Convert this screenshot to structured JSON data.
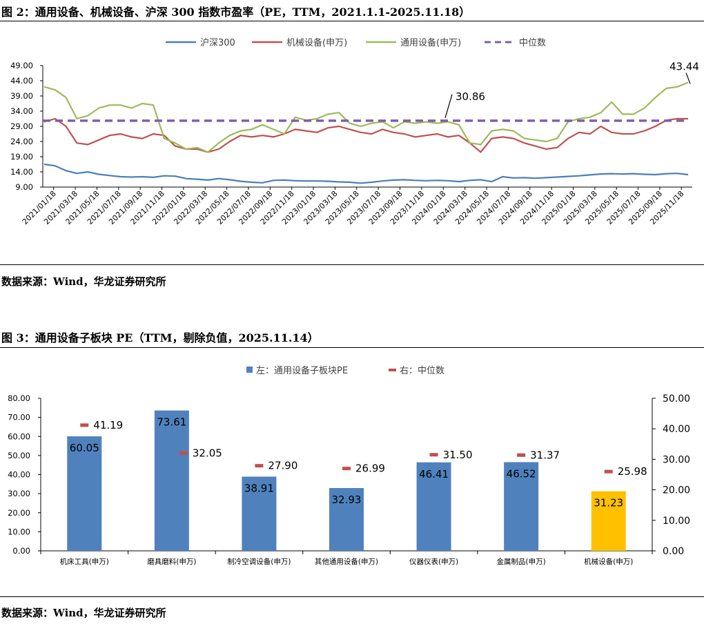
{
  "figures": [
    {
      "heading": "图 2：通用设备、机械设备、沪深 300 指数市盈率（PE，TTM，2021.1.1-2025.11.18）",
      "source": "数据来源：Wind，华龙证券研究所"
    },
    {
      "heading": "图 3：通用设备子板块 PE（TTM，剔除负值，2025.11.14）",
      "source": "数据来源：Wind，华龙证券研究所"
    }
  ],
  "chart_data": [
    {
      "type": "line",
      "title": "",
      "xlabel": "",
      "ylabel": "",
      "ylim": [
        9,
        49
      ],
      "yticks": [
        "49.00",
        "44.00",
        "39.00",
        "34.00",
        "29.00",
        "24.00",
        "19.00",
        "14.00",
        "9.00"
      ],
      "x_ticks": [
        "2021/01/18",
        "2021/03/18",
        "2021/05/18",
        "2021/07/18",
        "2021/09/18",
        "2021/11/18",
        "2022/01/18",
        "2022/03/18",
        "2022/05/18",
        "2022/07/18",
        "2022/09/18",
        "2022/11/18",
        "2023/01/18",
        "2023/03/18",
        "2023/05/18",
        "2023/07/18",
        "2023/09/18",
        "2023/11/18",
        "2024/01/18",
        "2024/03/18",
        "2024/05/18",
        "2024/07/18",
        "2024/09/18",
        "2024/11/18",
        "2025/01/18",
        "2025/03/18",
        "2025/05/18",
        "2025/07/18",
        "2025/09/18",
        "2025/11/18"
      ],
      "grid": false,
      "legend_position": "top",
      "series": [
        {
          "name": "沪深300",
          "color": "#4a7ebb",
          "dash": false,
          "values": [
            16.5,
            16.0,
            14.4,
            13.5,
            14.0,
            13.2,
            12.8,
            12.4,
            12.3,
            12.4,
            12.2,
            12.7,
            12.6,
            11.8,
            11.6,
            11.3,
            11.8,
            11.4,
            10.9,
            10.6,
            10.4,
            11.2,
            11.3,
            11.1,
            11.0,
            11.0,
            10.9,
            10.7,
            10.6,
            10.3,
            10.6,
            11.0,
            11.3,
            11.4,
            11.2,
            11.1,
            11.2,
            11.1,
            10.8,
            11.2,
            11.4,
            10.8,
            12.4,
            12.0,
            12.1,
            11.9,
            12.1,
            12.3,
            12.5,
            12.7,
            13.0,
            13.3,
            13.4,
            13.3,
            13.4,
            13.2,
            13.1,
            13.4,
            13.5,
            13.1
          ]
        },
        {
          "name": "机械设备(申万)",
          "color": "#c0504d",
          "dash": false,
          "values": [
            30.5,
            31.5,
            29.0,
            23.5,
            23.0,
            24.5,
            26.0,
            26.5,
            25.5,
            25.0,
            26.5,
            26.0,
            22.5,
            21.5,
            21.5,
            20.5,
            21.5,
            24.0,
            26.0,
            25.5,
            26.0,
            25.5,
            26.5,
            28.0,
            27.5,
            27.0,
            28.5,
            29.0,
            28.0,
            27.0,
            26.5,
            28.0,
            27.0,
            26.5,
            25.5,
            26.0,
            26.5,
            25.5,
            26.0,
            23.5,
            20.5,
            25.0,
            25.5,
            25.0,
            23.5,
            22.5,
            21.5,
            22.0,
            25.0,
            27.0,
            26.5,
            29.0,
            27.0,
            26.5,
            26.5,
            27.5,
            29.0,
            31.0,
            31.5,
            31.5
          ]
        },
        {
          "name": "通用设备(申万)",
          "color": "#9bbb59",
          "dash": false,
          "values": [
            42.0,
            41.0,
            38.5,
            31.5,
            32.5,
            35.0,
            36.0,
            36.0,
            35.0,
            36.5,
            36.0,
            25.0,
            23.5,
            21.5,
            22.0,
            20.5,
            23.5,
            26.0,
            27.5,
            28.0,
            29.5,
            28.0,
            26.5,
            32.0,
            31.0,
            31.5,
            33.0,
            33.5,
            30.0,
            29.0,
            30.0,
            30.5,
            28.5,
            30.5,
            30.0,
            30.5,
            30.0,
            30.5,
            29.5,
            23.5,
            23.0,
            27.5,
            28.0,
            27.5,
            25.0,
            24.5,
            24.0,
            25.0,
            30.5,
            31.5,
            32.0,
            33.5,
            37.0,
            33.0,
            33.0,
            35.0,
            38.5,
            41.5,
            42.0,
            43.44
          ]
        },
        {
          "name": "中位数",
          "color": "#7f5fa9",
          "dash": true,
          "constant": 30.86
        }
      ],
      "annotations": [
        {
          "label": "30.86",
          "value": 30.86
        },
        {
          "label": "43.44",
          "value": 43.44
        }
      ]
    },
    {
      "type": "bar",
      "title": "",
      "categories": [
        "机床工具(申万)",
        "磨具磨料(申万)",
        "制冷空调设备(申万)",
        "其他通用设备(申万)",
        "仪器仪表(申万)",
        "金属制品(申万)",
        "机械设备(申万)"
      ],
      "ylim_left": [
        0,
        80
      ],
      "yticks_left": [
        "80.00",
        "70.00",
        "60.00",
        "50.00",
        "40.00",
        "30.00",
        "20.00",
        "10.00",
        "0.00"
      ],
      "ylim_right": [
        0,
        50
      ],
      "yticks_right": [
        "50.00",
        "40.00",
        "30.00",
        "20.00",
        "10.00",
        "0.00"
      ],
      "grid": false,
      "legend_position": "top",
      "series": [
        {
          "name": "左：通用设备子板块PE",
          "axis": "left",
          "color": "#4f81bd",
          "highlight_color": "#ffc000",
          "values": [
            60.05,
            73.61,
            38.91,
            32.93,
            46.41,
            46.52,
            31.23
          ],
          "labels": [
            "60.05",
            "73.61",
            "38.91",
            "32.93",
            "46.41",
            "46.52",
            "31.23"
          ]
        },
        {
          "name": "右：中位数",
          "axis": "right",
          "color": "#c0504d",
          "values": [
            41.19,
            32.05,
            27.9,
            26.99,
            31.5,
            31.37,
            25.98
          ],
          "labels": [
            "41.19",
            "32.05",
            "27.90",
            "26.99",
            "31.50",
            "31.37",
            "25.98"
          ]
        }
      ]
    }
  ]
}
